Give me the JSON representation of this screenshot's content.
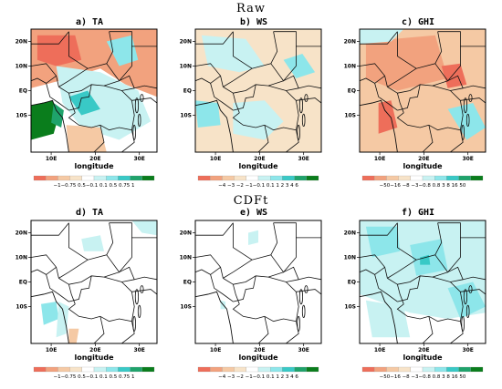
{
  "rows": [
    {
      "title": "Raw",
      "panels": [
        {
          "title": "a) TA",
          "colorbar_labels": "−1−0.75 0.5−0.1 0.1 0.5 0.75 1"
        },
        {
          "title": "b) WS",
          "colorbar_labels": "−4 −3 −2 −1−0.1 0.1 1 2 3 4 6"
        },
        {
          "title": "c) GHI",
          "colorbar_labels": "−50−16 −8 −3−0.8 0.8 3 8 16 50"
        }
      ]
    },
    {
      "title": "CDFt",
      "panels": [
        {
          "title": "d) TA",
          "colorbar_labels": "−1−0.75 0.5−0.1 0.1 0.5 0.75 1"
        },
        {
          "title": "e) WS",
          "colorbar_labels": "−4 −3 −2 −1−0.1 0.1 1 2 3 4 6"
        },
        {
          "title": "f) GHI",
          "colorbar_labels": "−50−16 −8 −3−0.8 0.8 3 8 16 50"
        }
      ]
    }
  ],
  "lat_ticks": [
    "20N",
    "10N",
    "EQ",
    "10S"
  ],
  "lon_ticks": [
    "10E",
    "20E",
    "30E"
  ],
  "xlabel": "longitude",
  "colors": {
    "colorbar": [
      "#ee6e5a",
      "#f2a27e",
      "#f5c9a4",
      "#f7e3c8",
      "#ffffff",
      "#c8f2f2",
      "#8de6ea",
      "#39c9c6",
      "#1fa36b",
      "#0a7d1c"
    ]
  }
}
